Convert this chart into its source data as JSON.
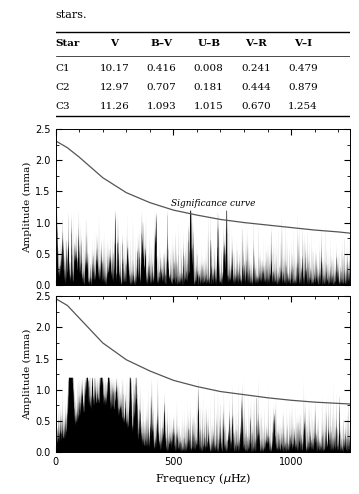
{
  "table_title": "stars.",
  "table_headers": [
    "Star",
    "V",
    "B–V",
    "U–B",
    "V–R",
    "V–I"
  ],
  "table_rows": [
    [
      "C1",
      "10.17",
      "0.416",
      "0.008",
      "0.241",
      "0.479"
    ],
    [
      "C2",
      "12.97",
      "0.707",
      "0.181",
      "0.444",
      "0.879"
    ],
    [
      "C3",
      "11.26",
      "1.093",
      "1.015",
      "0.670",
      "1.254"
    ]
  ],
  "plot_xlim": [
    0,
    1250
  ],
  "plot_ylim": [
    0,
    2.5
  ],
  "plot_yticks": [
    0,
    0.5,
    1.0,
    1.5,
    2.0,
    2.5
  ],
  "xlabel": "Frequency ($\\mu$Hz)",
  "ylabel": "Amplitude (mma)",
  "sig_curve_label": "Significance curve",
  "sig_curve1_x": [
    5,
    50,
    100,
    200,
    300,
    400,
    500,
    600,
    700,
    800,
    900,
    1000,
    1100,
    1200,
    1250
  ],
  "sig_curve1_y": [
    2.3,
    2.2,
    2.05,
    1.72,
    1.48,
    1.32,
    1.2,
    1.12,
    1.05,
    1.0,
    0.96,
    0.92,
    0.88,
    0.85,
    0.83
  ],
  "sig_curve2_x": [
    5,
    50,
    100,
    200,
    300,
    400,
    500,
    600,
    700,
    800,
    900,
    1000,
    1100,
    1200,
    1250
  ],
  "sig_curve2_y": [
    2.45,
    2.35,
    2.15,
    1.75,
    1.48,
    1.3,
    1.15,
    1.05,
    0.97,
    0.92,
    0.87,
    0.83,
    0.8,
    0.78,
    0.77
  ],
  "noise_color": "#000000",
  "sig_curve_color": "#555555",
  "background_color": "#ffffff",
  "fig_width": 3.59,
  "fig_height": 4.94,
  "dpi": 100
}
